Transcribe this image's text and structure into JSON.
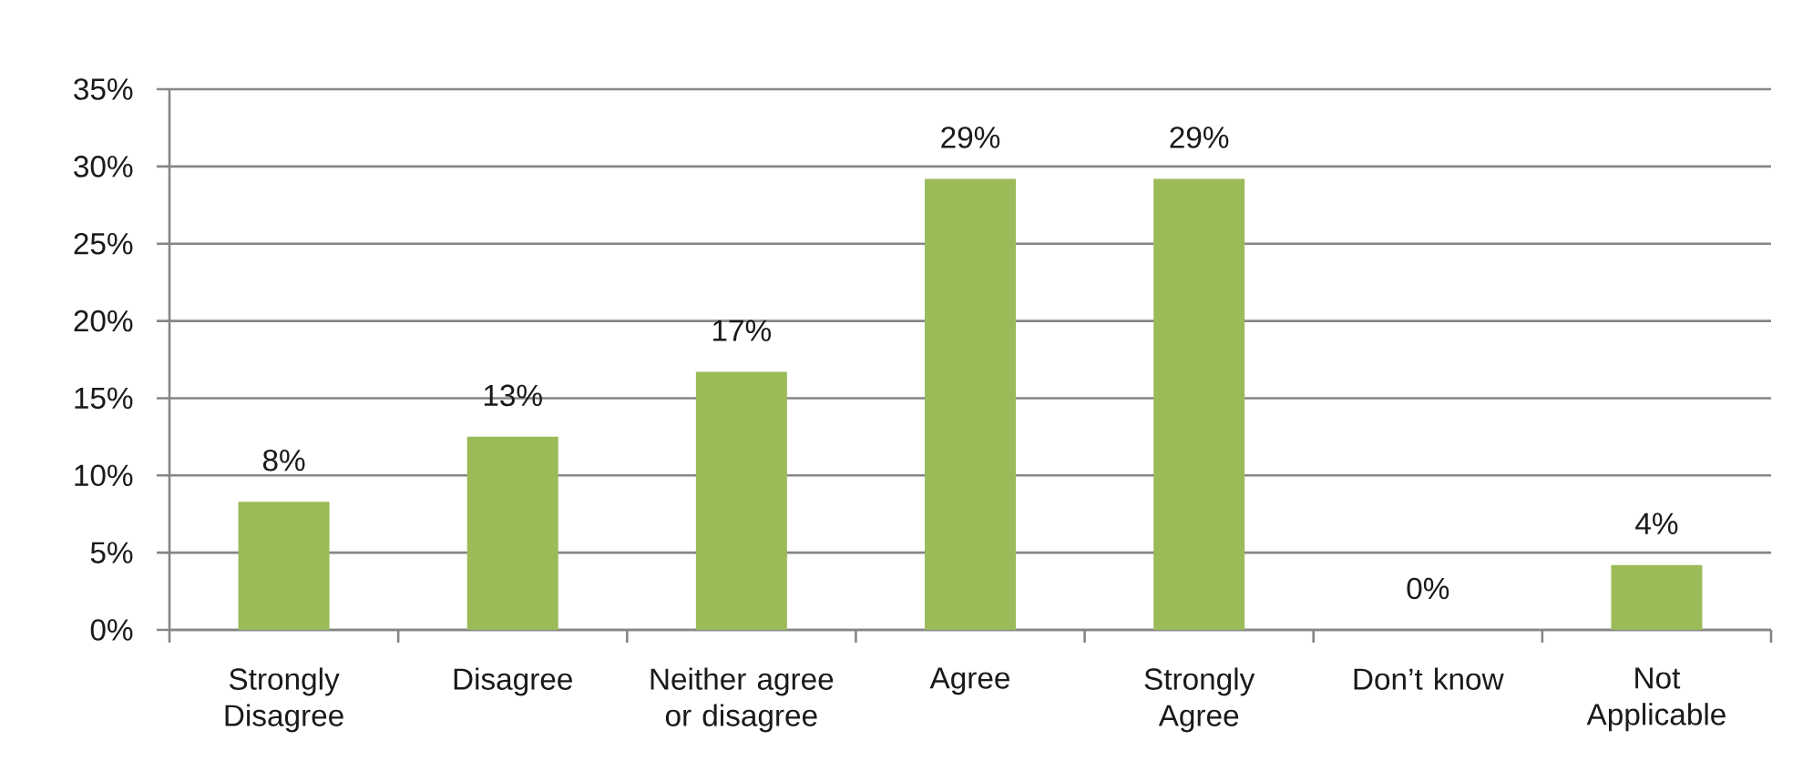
{
  "chart_data": {
    "type": "bar",
    "categories": [
      "Strongly Disagree",
      "Disagree",
      "Neither agree or disagree",
      "Agree",
      "Strongly Agree",
      "Don’t know",
      "Not Applicable"
    ],
    "values": [
      8.3,
      12.5,
      16.7,
      29.2,
      29.2,
      0,
      4.2
    ],
    "value_labels": [
      "8%",
      "13%",
      "17%",
      "29%",
      "29%",
      "0%",
      "4%"
    ],
    "color": "#9bbb59",
    "ylim": [
      0,
      35
    ],
    "yticks": [
      {
        "value": 0,
        "label": "0%"
      },
      {
        "value": 5,
        "label": "5%"
      },
      {
        "value": 10,
        "label": "10%"
      },
      {
        "value": 15,
        "label": "15%"
      },
      {
        "value": 20,
        "label": "20%"
      },
      {
        "value": 25,
        "label": "25%"
      },
      {
        "value": 30,
        "label": "30%"
      },
      {
        "value": 35,
        "label": "35%"
      }
    ],
    "grid": "y"
  }
}
